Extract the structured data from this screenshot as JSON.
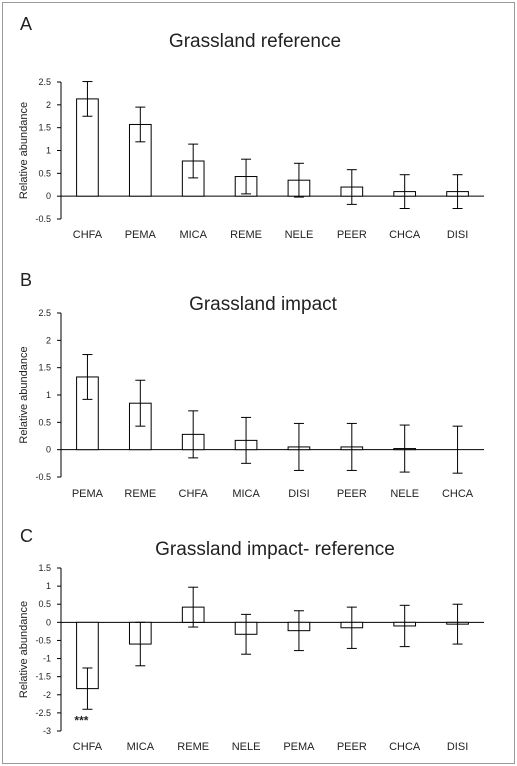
{
  "chart_data": [
    {
      "type": "bar",
      "panel_label": "A",
      "title": "Grassland reference",
      "xlabel": "",
      "ylabel": "Relative abundance",
      "ylim": [
        -0.5,
        2.5
      ],
      "yticks": [
        "2.5",
        "2",
        "1.5",
        "1",
        "0.5",
        "0",
        "-0.5"
      ],
      "categories": [
        "CHFA",
        "PEMA",
        "MICA",
        "REME",
        "NELE",
        "PEER",
        "CHCA",
        "DISI"
      ],
      "values": [
        2.13,
        1.57,
        0.77,
        0.43,
        0.35,
        0.2,
        0.1,
        0.1
      ],
      "error": [
        0.38,
        0.38,
        0.37,
        0.38,
        0.37,
        0.38,
        0.37,
        0.37
      ],
      "annotations": [],
      "grid": false
    },
    {
      "type": "bar",
      "panel_label": "B",
      "title": "Grassland impact",
      "xlabel": "",
      "ylabel": "Relative abundance",
      "ylim": [
        -0.5,
        2.5
      ],
      "yticks": [
        "2.5",
        "2",
        "1.5",
        "1",
        "0.5",
        "0",
        "-0.5"
      ],
      "categories": [
        "PEMA",
        "REME",
        "CHFA",
        "MICA",
        "DISI",
        "PEER",
        "NELE",
        "CHCA"
      ],
      "values": [
        1.33,
        0.85,
        0.28,
        0.17,
        0.05,
        0.05,
        0.02,
        0.0
      ],
      "error": [
        0.41,
        0.42,
        0.43,
        0.42,
        0.43,
        0.43,
        0.43,
        0.43
      ],
      "annotations": [],
      "grid": false
    },
    {
      "type": "bar",
      "panel_label": "C",
      "title": "Grassland impact- reference",
      "xlabel": "",
      "ylabel": "Relative abundance",
      "ylim": [
        -3,
        1.5
      ],
      "yticks": [
        "1.5",
        "1",
        "0.5",
        "0",
        "-0.5",
        "-1",
        "-1.5",
        "-2",
        "-2.5",
        "-3"
      ],
      "categories": [
        "CHFA",
        "MICA",
        "REME",
        "NELE",
        "PEMA",
        "PEER",
        "CHCA",
        "DISI"
      ],
      "values": [
        -1.83,
        -0.6,
        0.42,
        -0.33,
        -0.23,
        -0.15,
        -0.1,
        -0.05
      ],
      "error": [
        0.57,
        0.6,
        0.55,
        0.55,
        0.55,
        0.57,
        0.57,
        0.55
      ],
      "annotations": [
        {
          "category": "CHFA",
          "text": "***"
        }
      ],
      "grid": false
    }
  ]
}
